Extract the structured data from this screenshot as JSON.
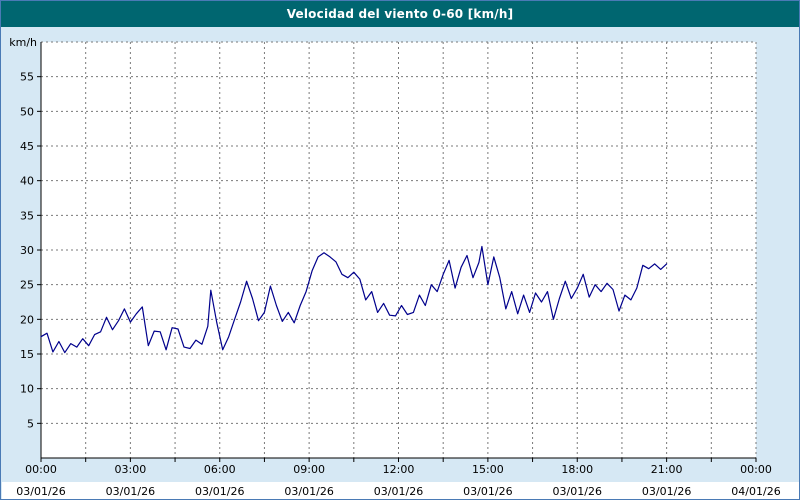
{
  "title": "Velocidad del viento 0-60 [km/h]",
  "colors": {
    "window_background": "#d6e8f4",
    "window_border": "#4a7ab5",
    "titlebar_background": "#006670",
    "titlebar_text": "#ffffff",
    "plot_background": "#ffffff",
    "grid": "#7a7a7a",
    "axis": "#000000",
    "line": "#00008c",
    "footer_background": "#ffffff",
    "tick_text": "#000000"
  },
  "chart_data": {
    "type": "line",
    "title": "Velocidad del viento 0-60 [km/h]",
    "ylabel": "km/h",
    "xlabel": "",
    "ylim": [
      0,
      60
    ],
    "y_tick_step": 5,
    "y_ticks": [
      5,
      10,
      15,
      20,
      25,
      30,
      35,
      40,
      45,
      50,
      55
    ],
    "x_range_hours": [
      0,
      24
    ],
    "x_grid_step_hours": 1.5,
    "grid": "dashed",
    "legend": "none",
    "x_ticks": [
      {
        "hour": 0,
        "time": "00:00",
        "date": "03/01/26"
      },
      {
        "hour": 3,
        "time": "03:00",
        "date": "03/01/26"
      },
      {
        "hour": 6,
        "time": "06:00",
        "date": "03/01/26"
      },
      {
        "hour": 9,
        "time": "09:00",
        "date": "03/01/26"
      },
      {
        "hour": 12,
        "time": "12:00",
        "date": "03/01/26"
      },
      {
        "hour": 15,
        "time": "15:00",
        "date": "03/01/26"
      },
      {
        "hour": 18,
        "time": "18:00",
        "date": "03/01/26"
      },
      {
        "hour": 21,
        "time": "21:00",
        "date": "03/01/26"
      },
      {
        "hour": 24,
        "time": "00:00",
        "date": "04/01/26"
      }
    ],
    "series": [
      {
        "name": "Velocidad del viento",
        "points": [
          [
            0,
            17.5
          ],
          [
            0.2,
            18
          ],
          [
            0.4,
            15.3
          ],
          [
            0.6,
            16.8
          ],
          [
            0.8,
            15.2
          ],
          [
            1,
            16.5
          ],
          [
            1.2,
            16
          ],
          [
            1.4,
            17.2
          ],
          [
            1.6,
            16.2
          ],
          [
            1.8,
            17.8
          ],
          [
            2,
            18.2
          ],
          [
            2.2,
            20.3
          ],
          [
            2.4,
            18.5
          ],
          [
            2.6,
            19.8
          ],
          [
            2.8,
            21.5
          ],
          [
            3,
            19.6
          ],
          [
            3.2,
            20.8
          ],
          [
            3.4,
            21.8
          ],
          [
            3.6,
            16.2
          ],
          [
            3.8,
            18.3
          ],
          [
            4,
            18.2
          ],
          [
            4.2,
            15.6
          ],
          [
            4.4,
            18.8
          ],
          [
            4.6,
            18.6
          ],
          [
            4.8,
            16
          ],
          [
            5,
            15.8
          ],
          [
            5.2,
            17
          ],
          [
            5.4,
            16.4
          ],
          [
            5.6,
            19
          ],
          [
            5.7,
            24.2
          ],
          [
            5.9,
            19.5
          ],
          [
            6.1,
            15.6
          ],
          [
            6.3,
            17.5
          ],
          [
            6.5,
            20
          ],
          [
            6.7,
            22.5
          ],
          [
            6.9,
            25.5
          ],
          [
            7.1,
            23
          ],
          [
            7.3,
            19.8
          ],
          [
            7.5,
            21
          ],
          [
            7.7,
            24.8
          ],
          [
            7.9,
            22
          ],
          [
            8.1,
            19.7
          ],
          [
            8.3,
            21
          ],
          [
            8.5,
            19.5
          ],
          [
            8.7,
            22
          ],
          [
            8.9,
            24
          ],
          [
            9.1,
            27
          ],
          [
            9.3,
            29
          ],
          [
            9.5,
            29.6
          ],
          [
            9.7,
            29
          ],
          [
            9.9,
            28.3
          ],
          [
            10.1,
            26.5
          ],
          [
            10.3,
            26
          ],
          [
            10.5,
            26.8
          ],
          [
            10.7,
            25.8
          ],
          [
            10.9,
            22.8
          ],
          [
            11.1,
            24
          ],
          [
            11.3,
            21
          ],
          [
            11.5,
            22.3
          ],
          [
            11.7,
            20.6
          ],
          [
            11.9,
            20.5
          ],
          [
            12.1,
            22
          ],
          [
            12.3,
            20.7
          ],
          [
            12.5,
            21
          ],
          [
            12.7,
            23.5
          ],
          [
            12.9,
            22
          ],
          [
            13.1,
            25
          ],
          [
            13.3,
            24
          ],
          [
            13.5,
            26.5
          ],
          [
            13.7,
            28.5
          ],
          [
            13.9,
            24.5
          ],
          [
            14.1,
            27.5
          ],
          [
            14.3,
            29.2
          ],
          [
            14.5,
            26
          ],
          [
            14.7,
            28.2
          ],
          [
            14.8,
            30.5
          ],
          [
            15,
            25
          ],
          [
            15.2,
            29
          ],
          [
            15.4,
            26
          ],
          [
            15.6,
            21.5
          ],
          [
            15.8,
            24
          ],
          [
            16,
            20.8
          ],
          [
            16.2,
            23.5
          ],
          [
            16.4,
            21
          ],
          [
            16.6,
            23.8
          ],
          [
            16.8,
            22.5
          ],
          [
            17,
            24
          ],
          [
            17.2,
            20
          ],
          [
            17.4,
            23
          ],
          [
            17.6,
            25.5
          ],
          [
            17.8,
            23
          ],
          [
            18,
            24.5
          ],
          [
            18.2,
            26.5
          ],
          [
            18.4,
            23.2
          ],
          [
            18.6,
            25
          ],
          [
            18.8,
            24
          ],
          [
            19,
            25.2
          ],
          [
            19.2,
            24.3
          ],
          [
            19.4,
            21.2
          ],
          [
            19.6,
            23.5
          ],
          [
            19.8,
            22.8
          ],
          [
            20,
            24.5
          ],
          [
            20.2,
            27.8
          ],
          [
            20.4,
            27.3
          ],
          [
            20.6,
            28
          ],
          [
            20.8,
            27.2
          ],
          [
            21,
            28
          ]
        ]
      }
    ]
  }
}
